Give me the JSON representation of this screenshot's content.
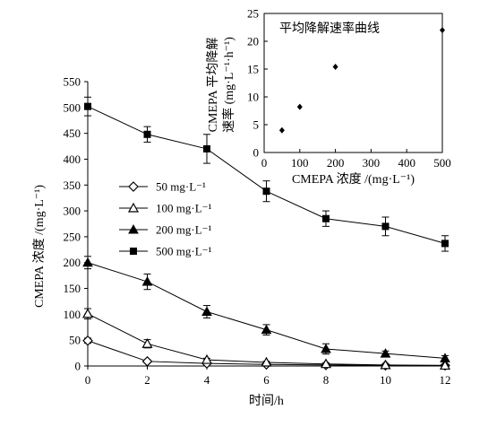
{
  "chart_data": [
    {
      "type": "line",
      "id": "main",
      "xlabel": "时间/h",
      "ylabel": "CMEPA 浓度 /(mg·L⁻¹)",
      "xlim": [
        0,
        12
      ],
      "ylim": [
        0,
        550
      ],
      "x_ticks": [
        0,
        2,
        4,
        6,
        8,
        10,
        12
      ],
      "y_ticks": [
        0,
        50,
        100,
        150,
        200,
        250,
        300,
        350,
        400,
        450,
        500,
        550
      ],
      "grid": false,
      "legend_position": "left-middle",
      "series": [
        {
          "name": "50 mg·L⁻¹",
          "marker": "diamond-open",
          "x": [
            0,
            2,
            4,
            6,
            8,
            10,
            12
          ],
          "y": [
            49,
            9,
            5,
            3,
            2,
            1,
            1
          ],
          "err": [
            5,
            3,
            2,
            1,
            1,
            1,
            1
          ]
        },
        {
          "name": "100 mg·L⁻¹",
          "marker": "triangle-open",
          "x": [
            0,
            2,
            4,
            6,
            8,
            10,
            12
          ],
          "y": [
            101,
            43,
            12,
            7,
            4,
            2,
            1
          ],
          "err": [
            10,
            8,
            3,
            2,
            2,
            1,
            1
          ]
        },
        {
          "name": "200 mg·L⁻¹",
          "marker": "triangle-filled",
          "x": [
            0,
            2,
            4,
            6,
            8,
            10,
            12
          ],
          "y": [
            200,
            163,
            105,
            70,
            33,
            24,
            15
          ],
          "err": [
            12,
            15,
            12,
            10,
            10,
            5,
            5
          ]
        },
        {
          "name": "500 mg·L⁻¹",
          "marker": "square-filled",
          "x": [
            0,
            2,
            4,
            6,
            8,
            10,
            12
          ],
          "y": [
            502,
            448,
            420,
            338,
            285,
            270,
            237
          ],
          "err": [
            18,
            15,
            28,
            20,
            15,
            18,
            15
          ]
        }
      ]
    },
    {
      "type": "scatter",
      "id": "inset",
      "title": "平均降解速率曲线",
      "xlabel": "CMEPA 浓度 /(mg·L⁻¹)",
      "ylabel_line1": "CMEPA 平均降解",
      "ylabel_line2": "速率 (mg·L⁻¹·h⁻¹)",
      "xlim": [
        0,
        500
      ],
      "ylim": [
        0,
        25
      ],
      "x_ticks": [
        0,
        100,
        200,
        300,
        400,
        500
      ],
      "y_ticks": [
        0,
        5,
        10,
        15,
        20,
        25
      ],
      "grid": false,
      "points": [
        {
          "x": 50,
          "y": 4
        },
        {
          "x": 100,
          "y": 8.2
        },
        {
          "x": 200,
          "y": 15.4
        },
        {
          "x": 500,
          "y": 22
        }
      ]
    }
  ]
}
